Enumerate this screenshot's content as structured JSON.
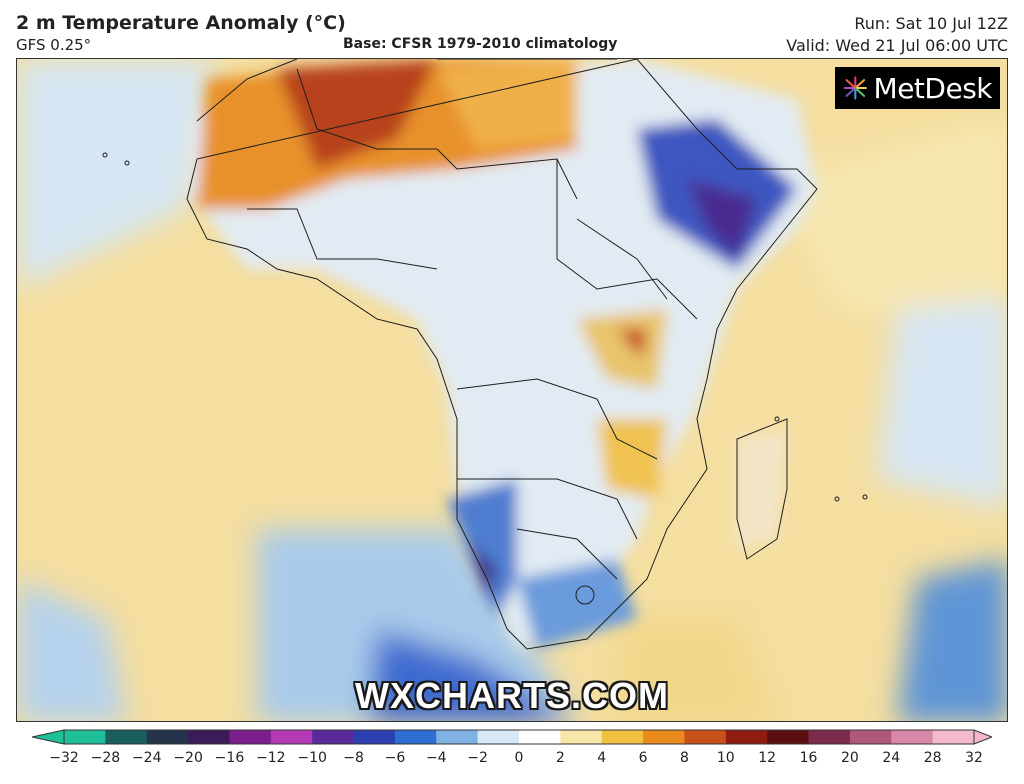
{
  "header": {
    "title": "2 m Temperature Anomaly (°C)",
    "model": "GFS 0.25°",
    "base": "Base: CFSR 1979-2010 climatology",
    "run": "Run: Sat 10 Jul 12Z",
    "valid": "Valid: Wed 21 Jul 06:00 UTC"
  },
  "brand": {
    "name": "MetDesk",
    "icon": "metdesk-starburst-icon"
  },
  "watermark": "WXCHARTS.COM",
  "legend": {
    "ticks": [
      "−32",
      "−28",
      "−24",
      "−20",
      "−16",
      "−12",
      "−10",
      "−8",
      "−6",
      "−4",
      "−2",
      "0",
      "2",
      "4",
      "6",
      "8",
      "10",
      "12",
      "16",
      "20",
      "24",
      "28",
      "32"
    ],
    "colors": [
      "#1fbf9a",
      "#1a5e5e",
      "#25344a",
      "#3b1b58",
      "#7a1f8c",
      "#b43ab5",
      "#5a2a9c",
      "#2c3fb0",
      "#2e6ed2",
      "#7fb2e2",
      "#d8e8f4",
      "#ffffff",
      "#f6e6a8",
      "#f0c040",
      "#e88a1c",
      "#c8501a",
      "#8e1c10",
      "#5a1010",
      "#7a2a4a",
      "#b0587a",
      "#d888a8",
      "#f2b8cc"
    ]
  }
}
